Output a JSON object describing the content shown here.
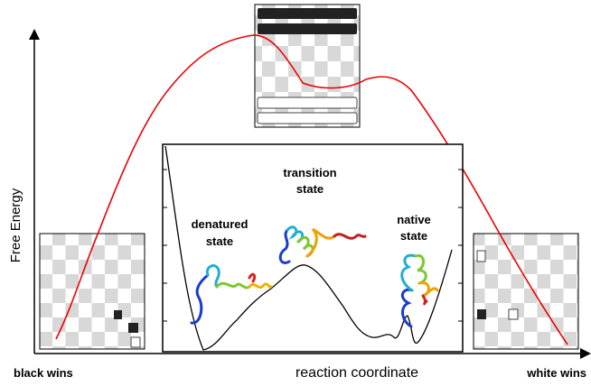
{
  "axis": {
    "y_label": "Free Energy",
    "x_label": "reaction coordinate",
    "left_end": "black wins",
    "right_end": "white wins"
  },
  "states": [
    {
      "lines": [
        "transition",
        "state"
      ]
    },
    {
      "lines": [
        "denatured",
        "state"
      ]
    },
    {
      "lines": [
        "native",
        "state"
      ]
    }
  ]
}
